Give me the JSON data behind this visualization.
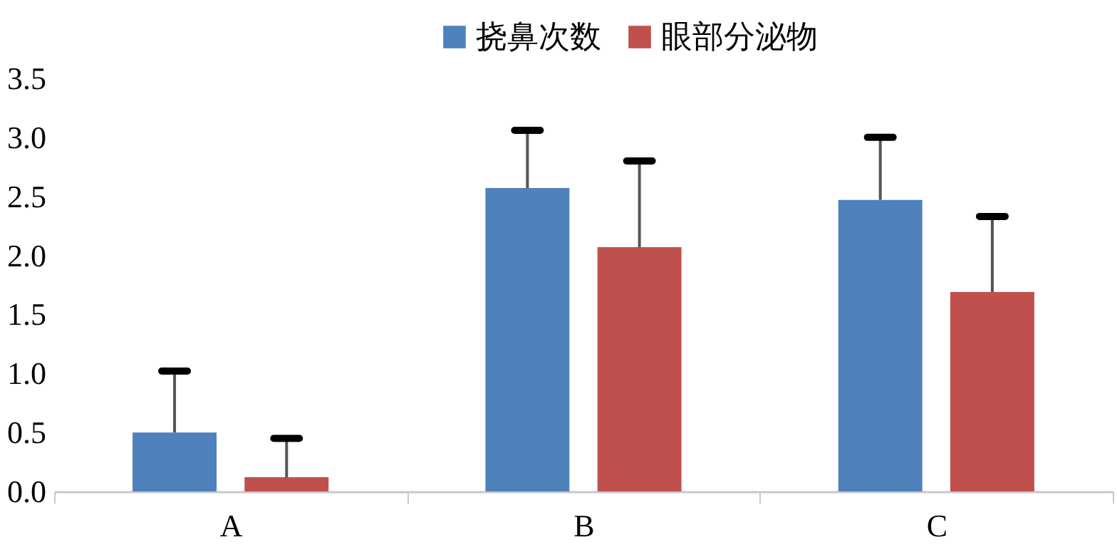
{
  "chart_data": {
    "type": "bar",
    "categories": [
      "A",
      "B",
      "C"
    ],
    "series": [
      {
        "name": "挠鼻次数",
        "color": "#4f81bd",
        "values": [
          0.5,
          2.57,
          2.47
        ],
        "errors": [
          [
            0.5,
            1.02
          ],
          [
            2.57,
            3.06
          ],
          [
            2.47,
            3.0
          ]
        ]
      },
      {
        "name": "眼部分泌物",
        "color": "#c0504d",
        "values": [
          0.12,
          2.07,
          1.69
        ],
        "errors": [
          [
            0.12,
            0.45
          ],
          [
            2.07,
            2.8
          ],
          [
            1.69,
            2.33
          ]
        ]
      }
    ],
    "ylim": [
      0,
      3.5
    ],
    "yticks": [
      {
        "value": 0,
        "label": "0.0"
      },
      {
        "value": 0.5,
        "label": "0.5"
      },
      {
        "value": 1,
        "label": "1.0"
      },
      {
        "value": 1.5,
        "label": "1.5"
      },
      {
        "value": 2,
        "label": "2.0"
      },
      {
        "value": 2.5,
        "label": "2.5"
      },
      {
        "value": 3,
        "label": "3.0"
      },
      {
        "value": 3.5,
        "label": "3.5"
      }
    ],
    "grid": false,
    "legend": "top"
  }
}
